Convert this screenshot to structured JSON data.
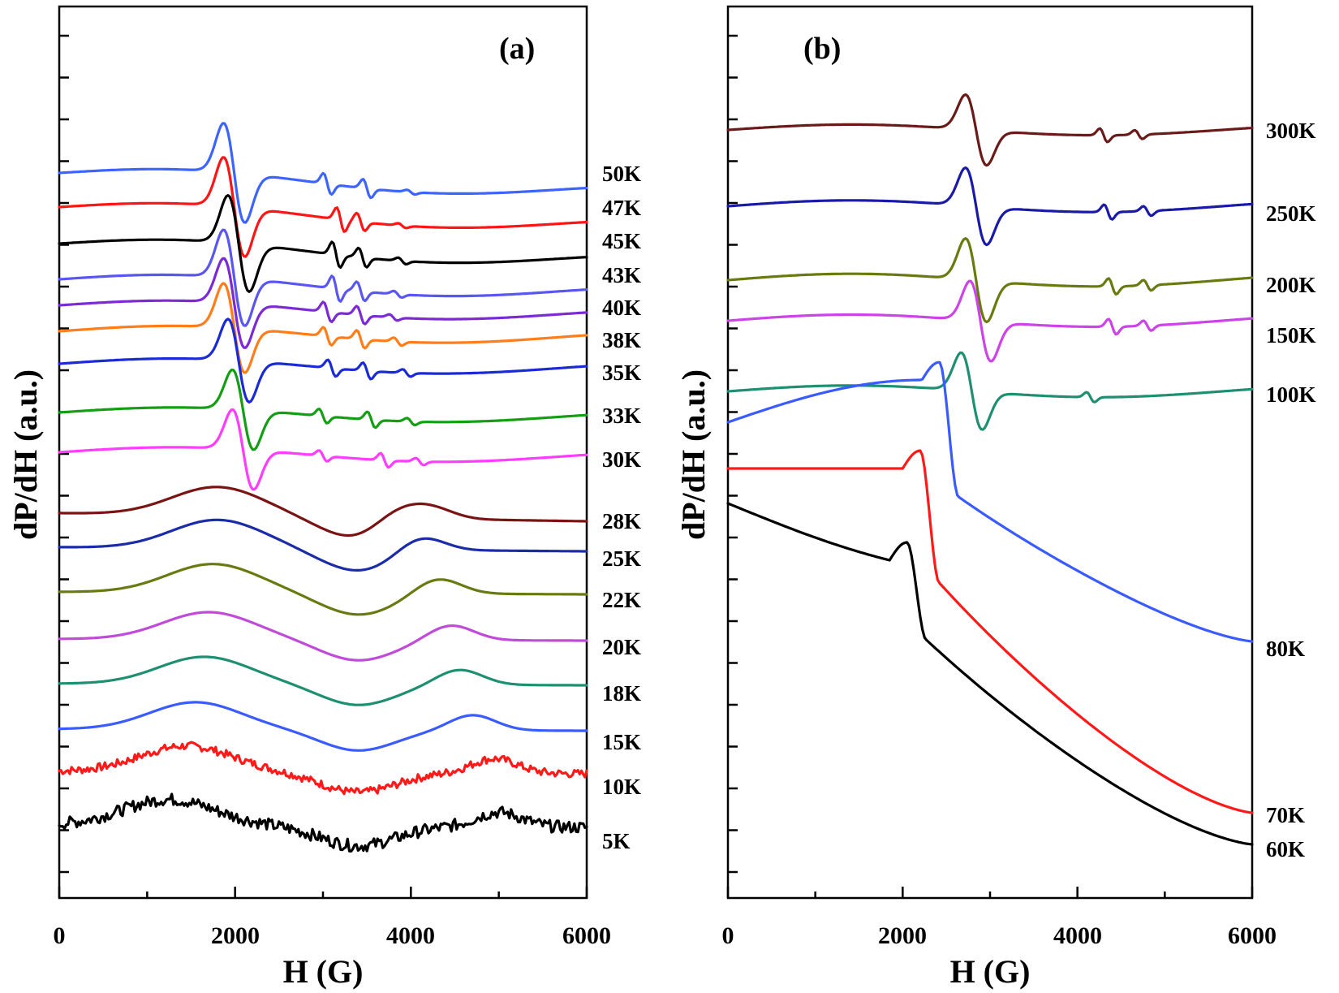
{
  "chart_data": [
    {
      "type": "line",
      "panel_label": "(a)",
      "xlabel": "H (G)",
      "ylabel": "dP/dH (a.u.)",
      "xlim": [
        0,
        6000
      ],
      "xticks": [
        0,
        2000,
        4000,
        6000
      ],
      "y_tick_labels": "none",
      "series": [
        {
          "name": "50K",
          "color": "#3e64ff",
          "kind": "edge",
          "base": 0.22,
          "slope": -2.2,
          "features": [
            [
              1900,
              0.3,
              50
            ],
            [
              3050,
              0.95,
              0
            ],
            [
              3500,
              0.85,
              0
            ],
            [
              4000,
              0.2,
              0
            ]
          ],
          "noise": 0.0
        },
        {
          "name": "47K",
          "color": "#ff1515",
          "kind": "edge",
          "base": 0.12,
          "slope": -2.2,
          "features": [
            [
              1900,
              0.34,
              100
            ],
            [
              3200,
              1.1,
              0
            ],
            [
              3430,
              0.8,
              0
            ],
            [
              3900,
              0.2,
              0
            ]
          ],
          "noise": 0.0
        },
        {
          "name": "45K",
          "color": "#000000",
          "kind": "edge",
          "base": 0.15,
          "slope": -2.0,
          "features": [
            [
              1950,
              0.4,
              145
            ],
            [
              3150,
              1.2,
              0
            ],
            [
              3450,
              0.9,
              0
            ],
            [
              3900,
              0.3,
              0
            ]
          ],
          "noise": 0.0
        },
        {
          "name": "43K",
          "color": "#5a56f2",
          "kind": "edge",
          "base": 0.28,
          "slope": -1.6,
          "features": [
            [
              1900,
              0.34,
              235
            ],
            [
              3150,
              1.2,
              0
            ],
            [
              3430,
              0.9,
              0
            ],
            [
              3850,
              0.3,
              0
            ]
          ],
          "noise": 0.0
        },
        {
          "name": "40K",
          "color": "#7b2ad4",
          "kind": "edge",
          "base": 0.35,
          "slope": -1.2,
          "features": [
            [
              1900,
              0.34,
              300
            ],
            [
              3050,
              1.0,
              0
            ],
            [
              3430,
              0.9,
              0
            ],
            [
              3800,
              0.3,
              0
            ]
          ],
          "noise": 0.0
        },
        {
          "name": "38K",
          "color": "#ff7d1a",
          "kind": "edge",
          "base": 0.4,
          "slope": -0.8,
          "features": [
            [
              1900,
              0.35,
              340
            ],
            [
              3050,
              0.9,
              0
            ],
            [
              3430,
              0.9,
              0
            ],
            [
              3850,
              0.4,
              0
            ]
          ],
          "noise": 0.0
        },
        {
          "name": "35K",
          "color": "#1a2bd6",
          "kind": "edge",
          "base": 0.45,
          "slope": -0.6,
          "features": [
            [
              1950,
              0.4,
              380
            ],
            [
              3100,
              0.9,
              0
            ],
            [
              3500,
              0.9,
              0
            ],
            [
              3950,
              0.4,
              0
            ]
          ],
          "noise": 0.0
        },
        {
          "name": "33K",
          "color": "#139e13",
          "kind": "edge",
          "base": 0.5,
          "slope": -0.6,
          "features": [
            [
              2000,
              0.45,
              450
            ],
            [
              3000,
              0.8,
              0
            ],
            [
              3550,
              0.9,
              0
            ],
            [
              4000,
              0.4,
              0
            ]
          ],
          "noise": 0.0
        },
        {
          "name": "30K",
          "color": "#ff3cff",
          "kind": "edge",
          "base": 0.55,
          "slope": -0.6,
          "features": [
            [
              2000,
              0.45,
              475
            ],
            [
              3000,
              0.6,
              0
            ],
            [
              3700,
              0.8,
              0
            ],
            [
              4100,
              0.4,
              0
            ]
          ],
          "noise": 0.0
        },
        {
          "name": "28K",
          "color": "#7a1414",
          "kind": "broad",
          "base": 0.6,
          "slope": -1.0,
          "features": [
            [
              1800,
              0.6,
              510
            ],
            [
              3800,
              1.0,
              0
            ],
            [
              4200,
              0.8,
              0
            ]
          ],
          "noise": 0.0
        },
        {
          "name": "25K",
          "color": "#1b2ca8",
          "kind": "broad",
          "base": 0.62,
          "slope": -0.5,
          "features": [
            [
              1800,
              0.6,
              555
            ],
            [
              4100,
              1.0,
              0
            ]
          ],
          "noise": 0.0
        },
        {
          "name": "22K",
          "color": "#6b7a10",
          "kind": "broad",
          "base": 0.55,
          "slope": -0.3,
          "features": [
            [
              1750,
              0.6,
              610
            ],
            [
              4300,
              1.0,
              0
            ]
          ],
          "noise": 0.0
        },
        {
          "name": "20K",
          "color": "#bf4bd8",
          "kind": "broad",
          "base": 0.5,
          "slope": -0.2,
          "features": [
            [
              1700,
              0.6,
              665
            ],
            [
              4450,
              1.0,
              0
            ]
          ],
          "noise": 0.0
        },
        {
          "name": "18K",
          "color": "#1f8f72",
          "kind": "broad",
          "base": 0.5,
          "slope": -0.2,
          "features": [
            [
              1650,
              0.6,
              720
            ],
            [
              4550,
              1.0,
              0
            ]
          ],
          "noise": 0.0
        },
        {
          "name": "15K",
          "color": "#3a5bff",
          "kind": "broad",
          "base": 0.45,
          "slope": -0.2,
          "features": [
            [
              1550,
              0.6,
              775
            ],
            [
              4700,
              1.0,
              0
            ]
          ],
          "noise": 0.0
        },
        {
          "name": "10K",
          "color": "#ff1a1a",
          "kind": "broad",
          "base": 0.4,
          "slope": -0.3,
          "features": [
            [
              1450,
              0.6,
              825
            ],
            [
              4950,
              1.0,
              0
            ]
          ],
          "noise": 1.0
        },
        {
          "name": "5K",
          "color": "#000000",
          "kind": "broad",
          "base": 0.35,
          "slope": -0.3,
          "features": [
            [
              1250,
              0.6,
              880
            ],
            [
              5000,
              1.0,
              0
            ]
          ],
          "noise": 1.5
        }
      ]
    },
    {
      "type": "line",
      "panel_label": "(b)",
      "xlabel": "H (G)",
      "ylabel": "dP/dH (a.u.)",
      "xlim": [
        0,
        6000
      ],
      "xticks": [
        0,
        2000,
        4000,
        6000
      ],
      "y_tick_labels": "none",
      "series": [
        {
          "name": "300K",
          "color": "#6b1a1a",
          "kind": "edge",
          "base": 0.0,
          "slope": 0.0,
          "features": [
            [
              2750,
              0.35,
              0
            ],
            [
              4300,
              0.9,
              0
            ],
            [
              4700,
              0.6,
              0
            ]
          ],
          "noise": 0.0
        },
        {
          "name": "250K",
          "color": "#1a1aa8",
          "kind": "edge",
          "base": 0.0,
          "slope": 0.0,
          "features": [
            [
              2750,
              0.35,
              0
            ],
            [
              4350,
              0.9,
              0
            ],
            [
              4800,
              0.6,
              0
            ]
          ],
          "noise": 0.0
        },
        {
          "name": "200K",
          "color": "#6b7a10",
          "kind": "edge",
          "base": 0.0,
          "slope": 0.0,
          "features": [
            [
              2750,
              0.35,
              0
            ],
            [
              4400,
              0.9,
              0
            ],
            [
              4800,
              0.6,
              0
            ]
          ],
          "noise": 0.0
        },
        {
          "name": "150K",
          "color": "#cc44e6",
          "kind": "edge",
          "base": 0.0,
          "slope": 0.0,
          "features": [
            [
              2800,
              0.35,
              0
            ],
            [
              4400,
              0.9,
              0
            ],
            [
              4800,
              0.6,
              0
            ]
          ],
          "noise": 0.0
        },
        {
          "name": "100K",
          "color": "#1f8f72",
          "kind": "edge",
          "base": 0.0,
          "slope": 0.0,
          "features": [
            [
              2700,
              0.35,
              0
            ],
            [
              4150,
              0.6,
              0
            ]
          ],
          "noise": 0.0
        },
        {
          "name": "80K",
          "color": "#3a5bff",
          "kind": "step",
          "base": 0.0,
          "slope": 0.0,
          "features": [
            [
              2420,
              0.35,
              0
            ]
          ],
          "noise": 0.0
        },
        {
          "name": "70K",
          "color": "#ff1a1a",
          "kind": "step",
          "base": 0.0,
          "slope": 0.0,
          "features": [
            [
              2200,
              0.35,
              0
            ]
          ],
          "noise": 0.0
        },
        {
          "name": "60K",
          "color": "#000000",
          "kind": "step",
          "base": 0.0,
          "slope": 0.0,
          "features": [
            [
              2050,
              0.35,
              0
            ]
          ],
          "noise": 0.0
        }
      ]
    }
  ]
}
